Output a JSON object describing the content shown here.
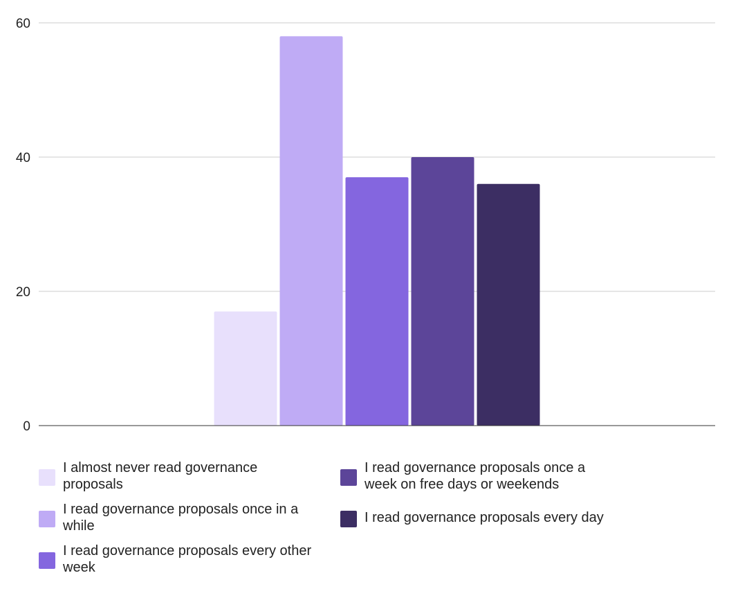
{
  "chart_data": {
    "type": "bar",
    "categories": [
      "I almost never read governance proposals",
      "I read governance proposals once in a while",
      "I read governance proposals every other week",
      "I read governance proposals once a week on free days or weekends",
      "I read governance proposals every day"
    ],
    "series": [
      {
        "values": [
          17,
          58,
          37,
          40,
          36
        ]
      }
    ],
    "colors": [
      "#e8e0fc",
      "#bfabf5",
      "#8466df",
      "#5c4599",
      "#3c2e63"
    ],
    "title": "",
    "xlabel": "",
    "ylabel": "",
    "ylim": [
      0,
      60
    ],
    "yticks": [
      0,
      20,
      40,
      60
    ],
    "grid": true,
    "legend_position": "bottom"
  }
}
